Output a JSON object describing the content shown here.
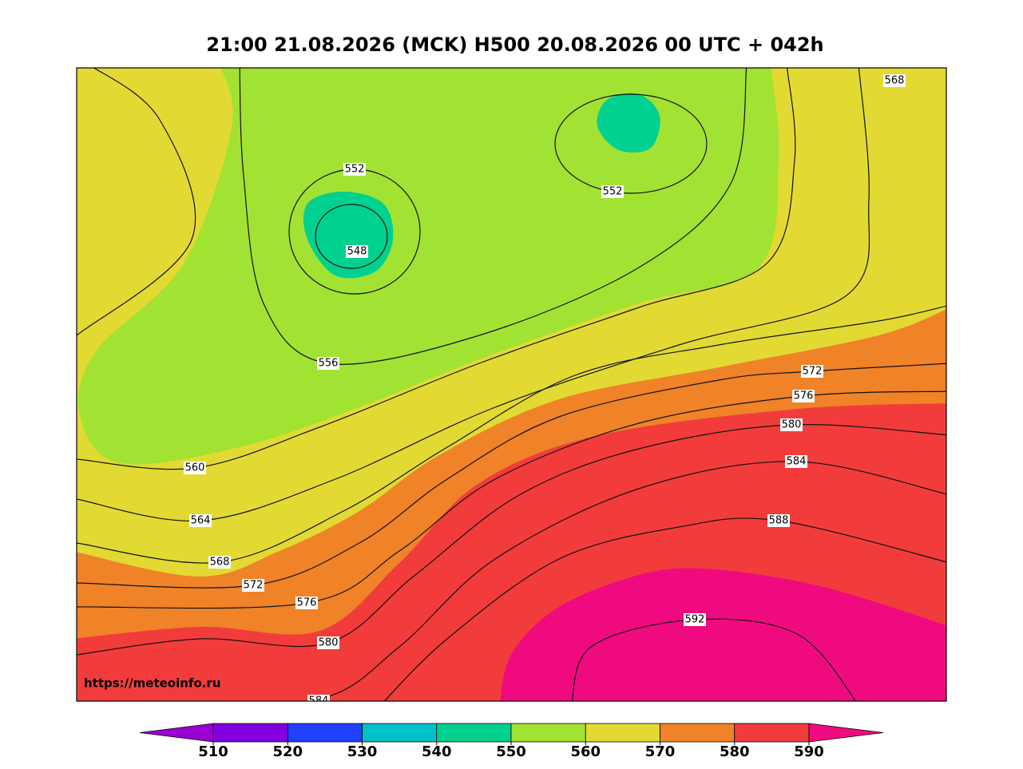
{
  "title": "21:00 21.08.2026 (MCK) H500  20.08.2026 00 UTC + 042h",
  "watermark": "https://meteoinfo.ru",
  "contour_labels": [
    568,
    552,
    548,
    552,
    556,
    572,
    576,
    580,
    584,
    560,
    564,
    588,
    568,
    572,
    576,
    592,
    580,
    584
  ],
  "colorbar": {
    "ticks": [
      510,
      520,
      530,
      540,
      550,
      560,
      570,
      580,
      590
    ],
    "colors": [
      "#9a00d0",
      "#8200e0",
      "#2040ff",
      "#00c0c8",
      "#00d090",
      "#a2e232",
      "#e2da32",
      "#f08228",
      "#f23c3c",
      "#f00a80"
    ]
  }
}
